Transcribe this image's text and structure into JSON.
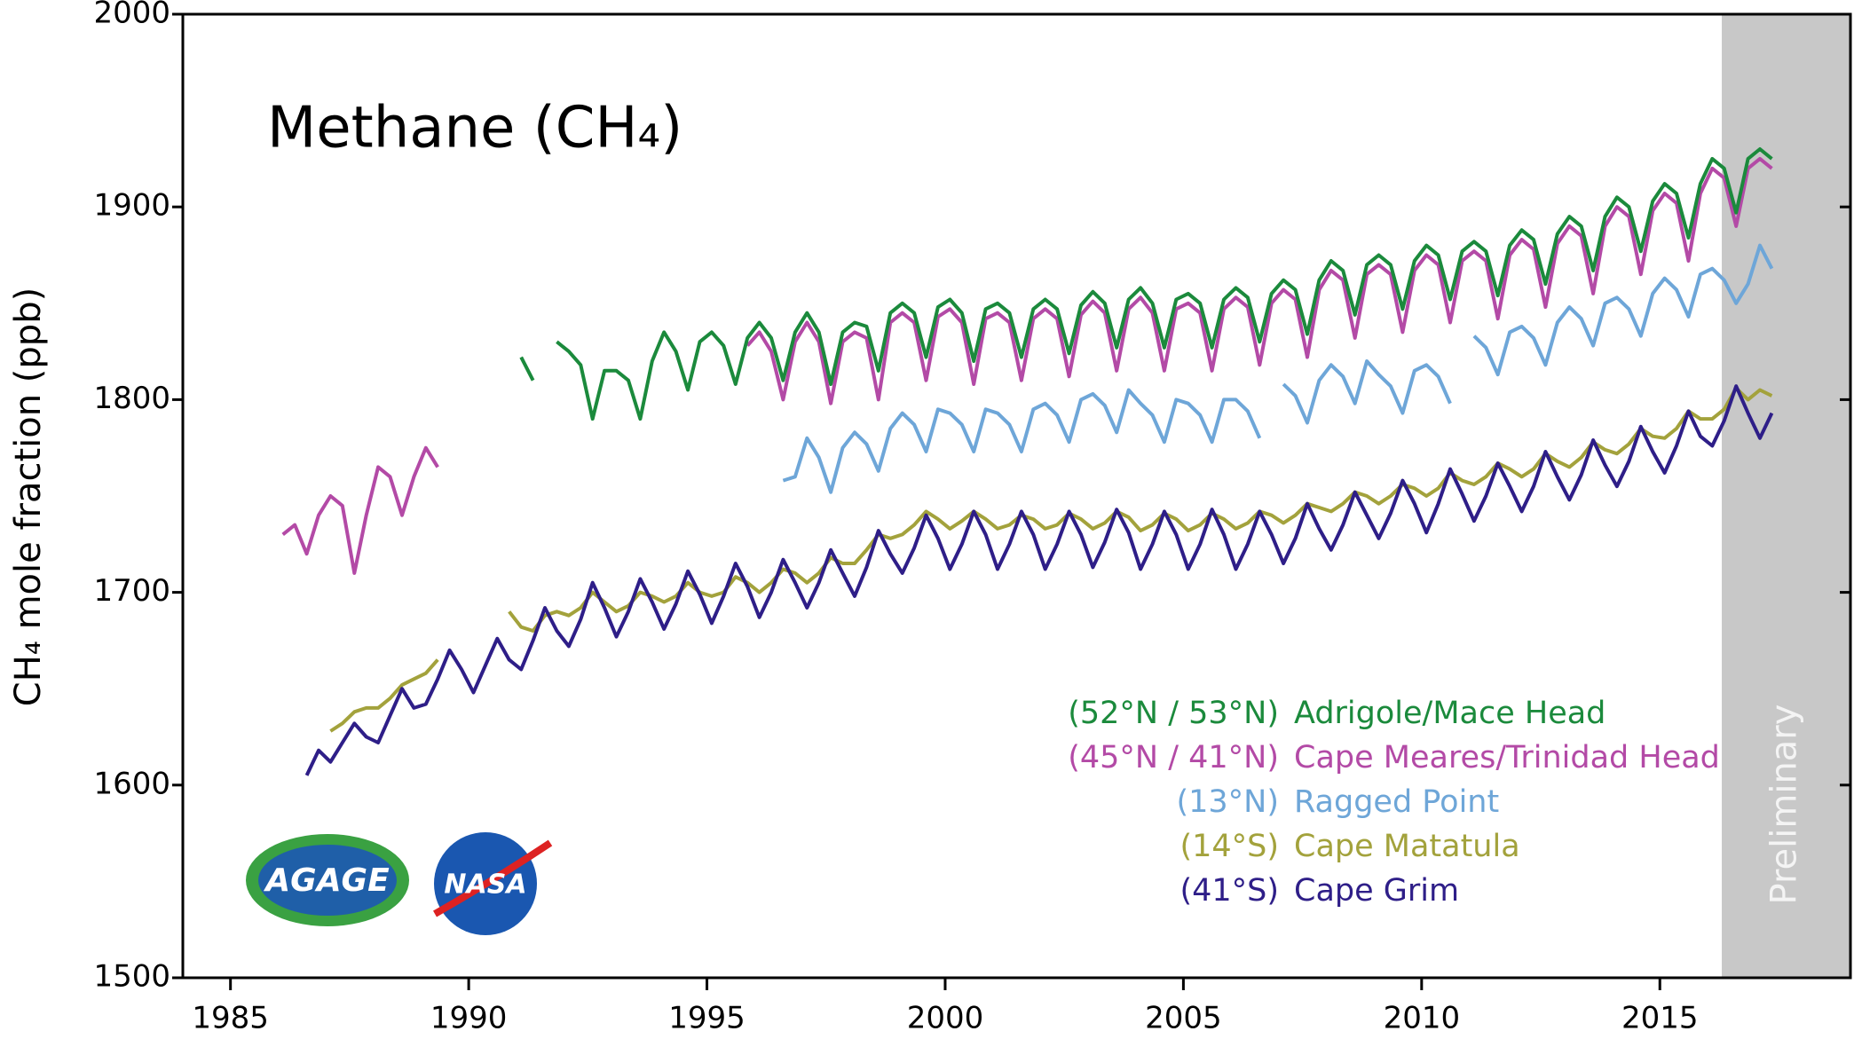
{
  "chart_data": {
    "type": "line",
    "title": "Methane (CH₄)",
    "y_label": "CH₄ mole fraction (ppb)",
    "xlim": [
      1984,
      2019
    ],
    "xticks": [
      1985,
      1990,
      1995,
      2000,
      2005,
      2010,
      2015
    ],
    "ylim": [
      1500,
      2000
    ],
    "yticks": [
      1500,
      1600,
      1700,
      1800,
      1900,
      2000
    ],
    "preliminary": {
      "start": 2016.3,
      "label": "Preliminary"
    },
    "logos": [
      "AGAGE",
      "NASA"
    ],
    "x": [
      1986.1,
      1986.35,
      1986.6,
      1986.85,
      1987.1,
      1987.35,
      1987.6,
      1987.85,
      1988.1,
      1988.35,
      1988.6,
      1988.85,
      1989.1,
      1989.35,
      1989.6,
      1989.85,
      1990.1,
      1990.35,
      1990.6,
      1990.85,
      1991.1,
      1991.35,
      1991.6,
      1991.85,
      1992.1,
      1992.35,
      1992.6,
      1992.85,
      1993.1,
      1993.35,
      1993.6,
      1993.85,
      1994.1,
      1994.35,
      1994.6,
      1994.85,
      1995.1,
      1995.35,
      1995.6,
      1995.85,
      1996.1,
      1996.35,
      1996.6,
      1996.85,
      1997.1,
      1997.35,
      1997.6,
      1997.85,
      1998.1,
      1998.35,
      1998.6,
      1998.85,
      1999.1,
      1999.35,
      1999.6,
      1999.85,
      2000.1,
      2000.35,
      2000.6,
      2000.85,
      2001.1,
      2001.35,
      2001.6,
      2001.85,
      2002.1,
      2002.35,
      2002.6,
      2002.85,
      2003.1,
      2003.35,
      2003.6,
      2003.85,
      2004.1,
      2004.35,
      2004.6,
      2004.85,
      2005.1,
      2005.35,
      2005.6,
      2005.85,
      2006.1,
      2006.35,
      2006.6,
      2006.85,
      2007.1,
      2007.35,
      2007.6,
      2007.85,
      2008.1,
      2008.35,
      2008.6,
      2008.85,
      2009.1,
      2009.35,
      2009.6,
      2009.85,
      2010.1,
      2010.35,
      2010.6,
      2010.85,
      2011.1,
      2011.35,
      2011.6,
      2011.85,
      2012.1,
      2012.35,
      2012.6,
      2012.85,
      2013.1,
      2013.35,
      2013.6,
      2013.85,
      2014.1,
      2014.35,
      2014.6,
      2014.85,
      2015.1,
      2015.35,
      2015.6,
      2015.85,
      2016.1,
      2016.35,
      2016.6,
      2016.85,
      2017.1,
      2017.35
    ],
    "series": [
      {
        "name": "Adrigole/Mace Head",
        "latitude": "(52°N / 53°N)",
        "color": "#1b8a3c",
        "values": [
          null,
          null,
          null,
          null,
          null,
          null,
          null,
          null,
          null,
          null,
          null,
          null,
          null,
          null,
          null,
          null,
          null,
          null,
          null,
          null,
          1822,
          1810,
          null,
          1830,
          1825,
          1818,
          1790,
          1815,
          1815,
          1810,
          1790,
          1820,
          1835,
          1825,
          1805,
          1830,
          1835,
          1828,
          1808,
          1832,
          1840,
          1832,
          1810,
          1835,
          1845,
          1835,
          1808,
          1835,
          1840,
          1838,
          1815,
          1845,
          1850,
          1845,
          1822,
          1848,
          1852,
          1845,
          1820,
          1847,
          1850,
          1845,
          1822,
          1847,
          1852,
          1847,
          1824,
          1849,
          1856,
          1850,
          1827,
          1852,
          1858,
          1850,
          1827,
          1852,
          1855,
          1850,
          1827,
          1852,
          1858,
          1853,
          1830,
          1855,
          1862,
          1857,
          1834,
          1862,
          1872,
          1867,
          1844,
          1870,
          1875,
          1870,
          1847,
          1872,
          1880,
          1875,
          1852,
          1877,
          1882,
          1877,
          1854,
          1880,
          1888,
          1883,
          1860,
          1886,
          1895,
          1890,
          1867,
          1895,
          1905,
          1900,
          1877,
          1903,
          1912,
          1907,
          1884,
          1912,
          1925,
          1920,
          1897,
          1925,
          1930,
          1925
        ]
      },
      {
        "name": "Cape Meares/Trinidad Head",
        "latitude": "(45°N / 41°N)",
        "color": "#b34aa6",
        "values": [
          1730,
          1735,
          1720,
          1740,
          1750,
          1745,
          1710,
          1740,
          1765,
          1760,
          1740,
          1760,
          1775,
          1765,
          null,
          null,
          null,
          null,
          null,
          null,
          null,
          null,
          null,
          null,
          null,
          null,
          null,
          null,
          null,
          null,
          null,
          null,
          null,
          null,
          null,
          null,
          null,
          null,
          null,
          1828,
          1835,
          1825,
          1800,
          1830,
          1840,
          1830,
          1798,
          1830,
          1835,
          1832,
          1800,
          1840,
          1845,
          1840,
          1810,
          1843,
          1847,
          1840,
          1808,
          1842,
          1845,
          1840,
          1810,
          1842,
          1847,
          1842,
          1812,
          1844,
          1851,
          1845,
          1815,
          1847,
          1853,
          1845,
          1815,
          1847,
          1850,
          1845,
          1815,
          1847,
          1853,
          1848,
          1818,
          1850,
          1857,
          1852,
          1822,
          1857,
          1867,
          1862,
          1832,
          1865,
          1870,
          1865,
          1835,
          1867,
          1875,
          1870,
          1840,
          1872,
          1877,
          1872,
          1842,
          1875,
          1883,
          1878,
          1848,
          1881,
          1890,
          1885,
          1855,
          1890,
          1900,
          1895,
          1865,
          1898,
          1907,
          1902,
          1872,
          1907,
          1920,
          1915,
          1890,
          1920,
          1925,
          1920
        ]
      },
      {
        "name": "Ragged Point",
        "latitude": "(13°N)",
        "color": "#6ea6d8",
        "values": [
          null,
          null,
          null,
          null,
          null,
          null,
          null,
          null,
          null,
          null,
          null,
          null,
          null,
          null,
          null,
          null,
          null,
          null,
          null,
          null,
          null,
          null,
          null,
          null,
          null,
          null,
          null,
          null,
          null,
          null,
          null,
          null,
          null,
          null,
          null,
          null,
          null,
          null,
          null,
          null,
          null,
          null,
          1758,
          1760,
          1780,
          1770,
          1752,
          1775,
          1783,
          1777,
          1763,
          1785,
          1793,
          1787,
          1773,
          1795,
          1793,
          1787,
          1773,
          1795,
          1793,
          1787,
          1773,
          1795,
          1798,
          1792,
          1778,
          1800,
          1803,
          1797,
          1783,
          1805,
          1798,
          1792,
          1778,
          1800,
          1798,
          1792,
          1778,
          1800,
          1800,
          1794,
          1780,
          null,
          1808,
          1802,
          1788,
          1810,
          1818,
          1812,
          1798,
          1820,
          1813,
          1807,
          1793,
          1815,
          1818,
          1812,
          1798,
          null,
          1833,
          1827,
          1813,
          1835,
          1838,
          1832,
          1818,
          1840,
          1848,
          1842,
          1828,
          1850,
          1853,
          1847,
          1833,
          1855,
          1863,
          1857,
          1843,
          1865,
          1868,
          1862,
          1850,
          1860,
          1880,
          1868
        ]
      },
      {
        "name": "Cape Matatula",
        "latitude": "(14°S)",
        "color": "#a3a23c",
        "values": [
          null,
          null,
          null,
          null,
          1628,
          1632,
          1638,
          1640,
          1640,
          1645,
          1652,
          1655,
          1658,
          1665,
          null,
          null,
          null,
          null,
          null,
          1690,
          1682,
          1680,
          1688,
          1690,
          1688,
          1692,
          1700,
          1695,
          1690,
          1693,
          1700,
          1698,
          1695,
          1698,
          1705,
          1700,
          1698,
          1700,
          1708,
          1705,
          1700,
          1705,
          1712,
          1710,
          1705,
          1710,
          1718,
          1715,
          1715,
          1722,
          1730,
          1728,
          1730,
          1735,
          1742,
          1738,
          1733,
          1737,
          1742,
          1738,
          1733,
          1735,
          1740,
          1738,
          1733,
          1735,
          1741,
          1738,
          1733,
          1736,
          1742,
          1739,
          1732,
          1735,
          1741,
          1738,
          1732,
          1735,
          1741,
          1738,
          1733,
          1736,
          1742,
          1740,
          1736,
          1740,
          1746,
          1744,
          1742,
          1746,
          1752,
          1750,
          1746,
          1750,
          1756,
          1754,
          1750,
          1754,
          1762,
          1758,
          1756,
          1760,
          1767,
          1764,
          1760,
          1764,
          1772,
          1768,
          1765,
          1770,
          1778,
          1774,
          1772,
          1777,
          1785,
          1781,
          1780,
          1785,
          1794,
          1790,
          1790,
          1795,
          1806,
          1800,
          1805,
          1802
        ]
      },
      {
        "name": "Cape Grim",
        "latitude": "(41°S)",
        "color": "#2e1e88",
        "values": [
          null,
          null,
          1605,
          1618,
          1612,
          1622,
          1632,
          1625,
          1622,
          1636,
          1650,
          1640,
          1642,
          1655,
          1670,
          1660,
          1648,
          1662,
          1676,
          1665,
          1660,
          1675,
          1692,
          1680,
          1672,
          1686,
          1705,
          1692,
          1677,
          1690,
          1707,
          1695,
          1681,
          1694,
          1711,
          1699,
          1684,
          1698,
          1715,
          1703,
          1687,
          1700,
          1717,
          1705,
          1692,
          1705,
          1722,
          1710,
          1698,
          1713,
          1732,
          1720,
          1710,
          1723,
          1740,
          1728,
          1712,
          1725,
          1742,
          1730,
          1712,
          1725,
          1742,
          1730,
          1712,
          1725,
          1742,
          1730,
          1713,
          1726,
          1743,
          1731,
          1712,
          1725,
          1742,
          1730,
          1712,
          1725,
          1743,
          1730,
          1712,
          1725,
          1742,
          1730,
          1715,
          1728,
          1746,
          1733,
          1722,
          1735,
          1752,
          1740,
          1728,
          1741,
          1758,
          1746,
          1731,
          1746,
          1764,
          1751,
          1737,
          1750,
          1767,
          1755,
          1742,
          1755,
          1773,
          1760,
          1748,
          1761,
          1779,
          1766,
          1755,
          1768,
          1786,
          1773,
          1762,
          1776,
          1794,
          1781,
          1776,
          1789,
          1807,
          1793,
          1780,
          1793
        ]
      }
    ]
  }
}
